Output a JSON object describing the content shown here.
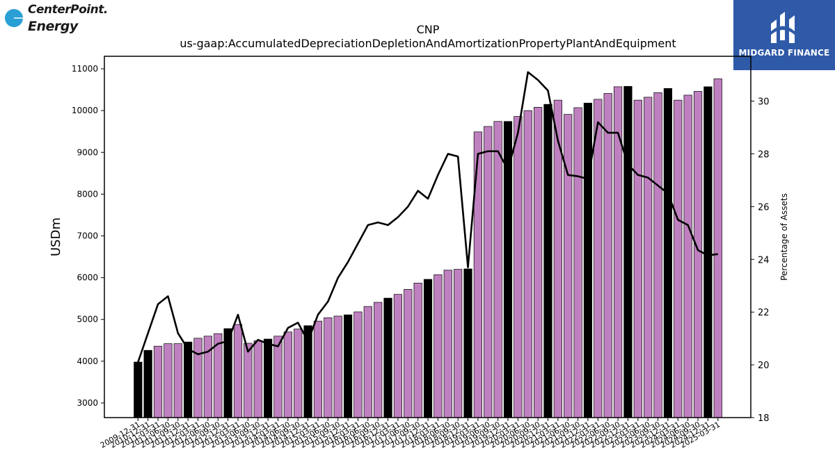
{
  "logos": {
    "left_line1": "CenterPoint.",
    "left_line2": "Energy",
    "right_text": "MIDGARD FINANCE"
  },
  "colors": {
    "bar_default": "#bf80bf",
    "bar_highlight": "#000000",
    "line": "#000000",
    "left_logo_dot": "#2a9fd6",
    "right_logo_bg": "#2f5aa8"
  },
  "chart_data": {
    "type": "bar",
    "title": "CNP",
    "subtitle": "us-gaap:AccumulatedDepreciationDepletionAndAmortizationPropertyPlantAndEquipment",
    "ylabel": "USDm",
    "y2label": "Percentage of Assets",
    "ylim": [
      2650,
      11300
    ],
    "y2lim": [
      18,
      31.7
    ],
    "yticks": [
      3000,
      4000,
      5000,
      6000,
      7000,
      8000,
      9000,
      10000,
      11000
    ],
    "y2ticks": [
      18,
      20,
      22,
      24,
      26,
      28,
      30
    ],
    "grid": false,
    "categories": [
      "2009-12-31",
      "2010-12-31",
      "2011-03-31",
      "2011-06-30",
      "2011-09-30",
      "2011-12-31",
      "2012-03-31",
      "2012-06-30",
      "2012-09-30",
      "2012-12-31",
      "2013-03-31",
      "2013-06-30",
      "2013-09-30",
      "2013-12-31",
      "2014-03-31",
      "2014-06-30",
      "2014-09-30",
      "2014-12-31",
      "2015-03-31",
      "2015-06-30",
      "2015-09-30",
      "2015-12-31",
      "2016-03-31",
      "2016-06-30",
      "2016-09-30",
      "2016-12-31",
      "2017-03-31",
      "2017-06-30",
      "2017-09-30",
      "2017-12-31",
      "2018-03-31",
      "2018-06-30",
      "2018-09-30",
      "2018-12-31",
      "2019-03-31",
      "2019-06-30",
      "2019-09-30",
      "2019-12-31",
      "2020-03-31",
      "2020-06-30",
      "2020-09-30",
      "2020-12-31",
      "2021-03-31",
      "2021-06-30",
      "2021-09-30",
      "2021-12-31",
      "2022-03-31",
      "2022-06-30",
      "2022-09-30",
      "2022-12-31",
      "2023-03-31",
      "2023-06-30",
      "2023-09-30",
      "2023-12-31",
      "2024-03-31",
      "2024-06-30",
      "2024-09-30",
      "2024-12-31",
      "2025-03-31"
    ],
    "series": [
      {
        "values": [
          3980,
          4260,
          4360,
          4420,
          4420,
          4460,
          4550,
          4600,
          4660,
          4780,
          4880,
          4430,
          4490,
          4530,
          4600,
          4700,
          4770,
          4850,
          4960,
          5040,
          5080,
          5110,
          5180,
          5310,
          5410,
          5510,
          5600,
          5720,
          5870,
          5960,
          6070,
          6180,
          6200,
          6210,
          9490,
          9620,
          9740,
          9740,
          9860,
          10000,
          10080,
          10150,
          10250,
          9910,
          10070,
          10180,
          10270,
          10410,
          10570,
          10580,
          10250,
          10320,
          10430,
          10530,
          10250,
          10370,
          10460,
          10570,
          10760
        ],
        "highlight": [
          true,
          true,
          false,
          false,
          false,
          true,
          false,
          false,
          false,
          true,
          false,
          false,
          false,
          true,
          false,
          false,
          false,
          true,
          false,
          false,
          false,
          true,
          false,
          false,
          false,
          true,
          false,
          false,
          false,
          true,
          false,
          false,
          false,
          true,
          false,
          false,
          false,
          true,
          false,
          false,
          false,
          true,
          false,
          false,
          false,
          true,
          false,
          false,
          false,
          true,
          false,
          false,
          false,
          true,
          false,
          false,
          false,
          true,
          false
        ]
      },
      {
        "axis": "right",
        "type": "line",
        "values": [
          20.1,
          21.2,
          22.3,
          22.6,
          21.2,
          20.6,
          20.4,
          20.5,
          20.8,
          20.9,
          21.9,
          20.5,
          20.95,
          20.8,
          20.7,
          21.4,
          21.6,
          20.9,
          21.9,
          22.4,
          23.3,
          23.9,
          24.6,
          25.3,
          25.4,
          25.3,
          25.6,
          26.0,
          26.6,
          26.3,
          27.2,
          28.0,
          27.9,
          23.7,
          28.0,
          28.1,
          28.1,
          27.4,
          28.8,
          31.1,
          30.8,
          30.4,
          28.5,
          27.2,
          27.15,
          27.05,
          29.2,
          28.8,
          28.8,
          27.6,
          27.2,
          27.1,
          26.8,
          26.5,
          25.5,
          25.3,
          24.35,
          24.15,
          24.2
        ]
      }
    ]
  }
}
